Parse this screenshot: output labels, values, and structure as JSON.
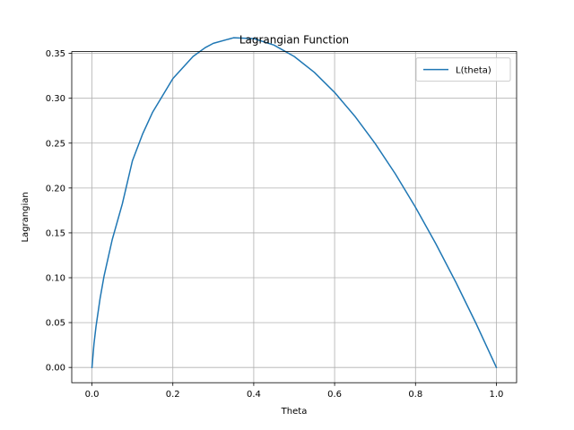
{
  "chart_data": {
    "type": "line",
    "title": "Lagrangian Function",
    "xlabel": "Theta",
    "ylabel": "Lagrangian",
    "xlim": [
      -0.05,
      1.05
    ],
    "ylim": [
      -0.017,
      0.352
    ],
    "xticks": [
      0.0,
      0.2,
      0.4,
      0.6,
      0.8,
      1.0
    ],
    "xtick_labels": [
      "0.0",
      "0.2",
      "0.4",
      "0.6",
      "0.8",
      "1.0"
    ],
    "yticks": [
      0.0,
      0.05,
      0.1,
      0.15,
      0.2,
      0.25,
      0.3,
      0.35
    ],
    "ytick_labels": [
      "0.00",
      "0.05",
      "0.10",
      "0.15",
      "0.20",
      "0.25",
      "0.30",
      "0.35"
    ],
    "grid": true,
    "legend_position": "top-right",
    "series": [
      {
        "name": "L(theta)",
        "color": "#1f77b4",
        "x": [
          0.0,
          0.005,
          0.01,
          0.02,
          0.03,
          0.05,
          0.075,
          0.1,
          0.125,
          0.15,
          0.2,
          0.25,
          0.28,
          0.3,
          0.35,
          0.4,
          0.45,
          0.5,
          0.55,
          0.6,
          0.65,
          0.7,
          0.75,
          0.8,
          0.85,
          0.9,
          0.95,
          1.0
        ],
        "y": [
          0.0,
          0.0265,
          0.0456,
          0.0767,
          0.1021,
          0.1423,
          0.1822,
          0.2303,
          0.2599,
          0.2845,
          0.3219,
          0.3466,
          0.3564,
          0.3612,
          0.3674,
          0.3665,
          0.3593,
          0.3466,
          0.3288,
          0.3065,
          0.28,
          0.2497,
          0.2158,
          0.1785,
          0.1381,
          0.0948,
          0.0487,
          0.0
        ]
      }
    ]
  }
}
